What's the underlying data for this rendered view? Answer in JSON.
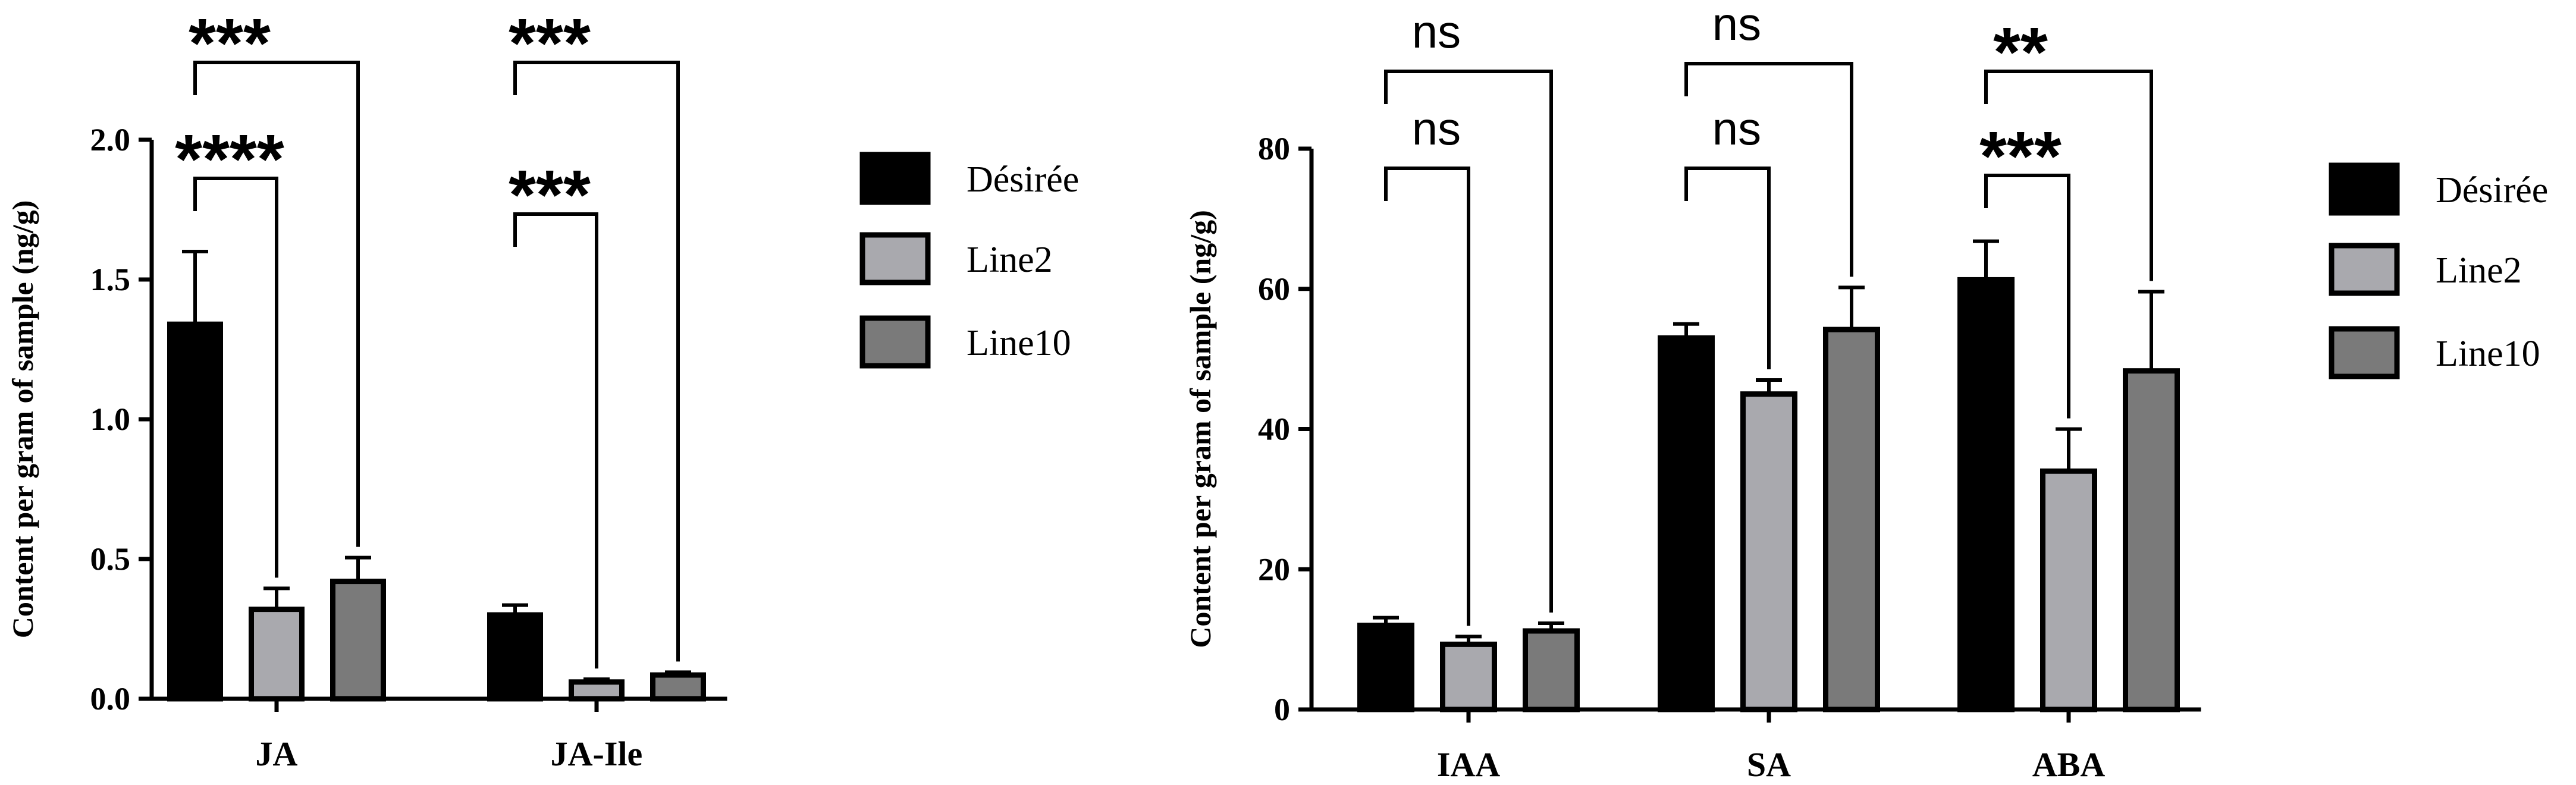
{
  "colors": {
    "Désirée": "#000000",
    "Line2": "#a9a9ae",
    "Line10": "#7a7a7a"
  },
  "chart_data": [
    {
      "type": "bar",
      "categories": [
        "JA",
        "JA-Ile"
      ],
      "series": [
        {
          "name": "Désirée",
          "values": [
            1.34,
            0.3
          ],
          "errors": [
            0.26,
            0.035
          ]
        },
        {
          "name": "Line2",
          "values": [
            0.32,
            0.06
          ],
          "errors": [
            0.075,
            0.01
          ]
        },
        {
          "name": "Line10",
          "values": [
            0.42,
            0.085
          ],
          "errors": [
            0.085,
            0.01
          ]
        }
      ],
      "ylabel": "Content per gram of sample (ng/g)",
      "ylim": [
        0,
        2.0
      ],
      "yticks": [
        "0.0",
        "0.5",
        "1.0",
        "1.5",
        "2.0"
      ],
      "legend": {
        "placement": "right",
        "entries": [
          "Désirée",
          "Line2",
          "Line10"
        ]
      },
      "significance": [
        {
          "category": "JA",
          "compare": "Line2",
          "label": "****"
        },
        {
          "category": "JA",
          "compare": "Line10",
          "label": "***"
        },
        {
          "category": "JA-Ile",
          "compare": "Line2",
          "label": "***"
        },
        {
          "category": "JA-Ile",
          "compare": "Line10",
          "label": "***"
        }
      ]
    },
    {
      "type": "bar",
      "categories": [
        "IAA",
        "SA",
        "ABA"
      ],
      "series": [
        {
          "name": "Désirée",
          "values": [
            12,
            53,
            61.3
          ],
          "errors": [
            1.1,
            2.0,
            5.5
          ]
        },
        {
          "name": "Line2",
          "values": [
            9.3,
            45,
            34
          ],
          "errors": [
            1.1,
            2.0,
            6.0
          ]
        },
        {
          "name": "Line10",
          "values": [
            11.2,
            54.2,
            48.3
          ],
          "errors": [
            1.1,
            6.0,
            11.3
          ]
        }
      ],
      "ylabel": "Content per gram of sample (ng/g)",
      "ylim": [
        0,
        80
      ],
      "yticks": [
        "0",
        "20",
        "40",
        "60",
        "80"
      ],
      "legend": {
        "placement": "right",
        "entries": [
          "Désirée",
          "Line2",
          "Line10"
        ]
      },
      "significance": [
        {
          "category": "IAA",
          "compare": "Line2",
          "label": "ns"
        },
        {
          "category": "IAA",
          "compare": "Line10",
          "label": "ns"
        },
        {
          "category": "SA",
          "compare": "Line2",
          "label": "ns"
        },
        {
          "category": "SA",
          "compare": "Line10",
          "label": "ns"
        },
        {
          "category": "ABA",
          "compare": "Line2",
          "label": "***"
        },
        {
          "category": "ABA",
          "compare": "Line10",
          "label": "**"
        }
      ]
    }
  ]
}
